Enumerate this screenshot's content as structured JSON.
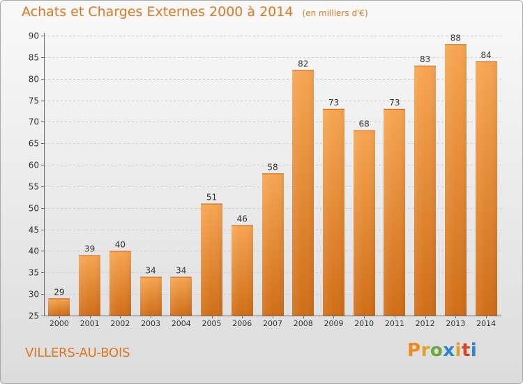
{
  "header": {
    "title": "Achats et Charges Externes 2000 à 2014",
    "subtitle": "(en milliers d'€)"
  },
  "footer": {
    "city": "VILLERS-AU-BOIS",
    "brand": "Proxiti"
  },
  "colors": {
    "accent": "#e0771e",
    "bar_top": "#f6a552",
    "bar_bottom": "#cf6d17",
    "gridline": "#cccccc",
    "logo": [
      "#f08a1c",
      "#e0a020",
      "#6aa73c",
      "#2f86c6",
      "#e0a020",
      "#d8432a",
      "#2f86c6"
    ]
  },
  "chart_data": {
    "type": "bar",
    "title": "Achats et Charges Externes 2000 à 2014",
    "subtitle": "(en milliers d'€)",
    "xlabel": "",
    "ylabel": "",
    "categories": [
      "2000",
      "2001",
      "2002",
      "2003",
      "2004",
      "2005",
      "2006",
      "2007",
      "2008",
      "2009",
      "2010",
      "2011",
      "2012",
      "2013",
      "2014"
    ],
    "values": [
      29,
      39,
      40,
      34,
      34,
      51,
      46,
      58,
      82,
      73,
      68,
      73,
      83,
      88,
      84
    ],
    "ylim": [
      25,
      90
    ],
    "yticks": [
      25,
      30,
      35,
      40,
      45,
      50,
      55,
      60,
      65,
      70,
      75,
      80,
      85,
      90
    ],
    "grid": true,
    "data_labels": true
  }
}
